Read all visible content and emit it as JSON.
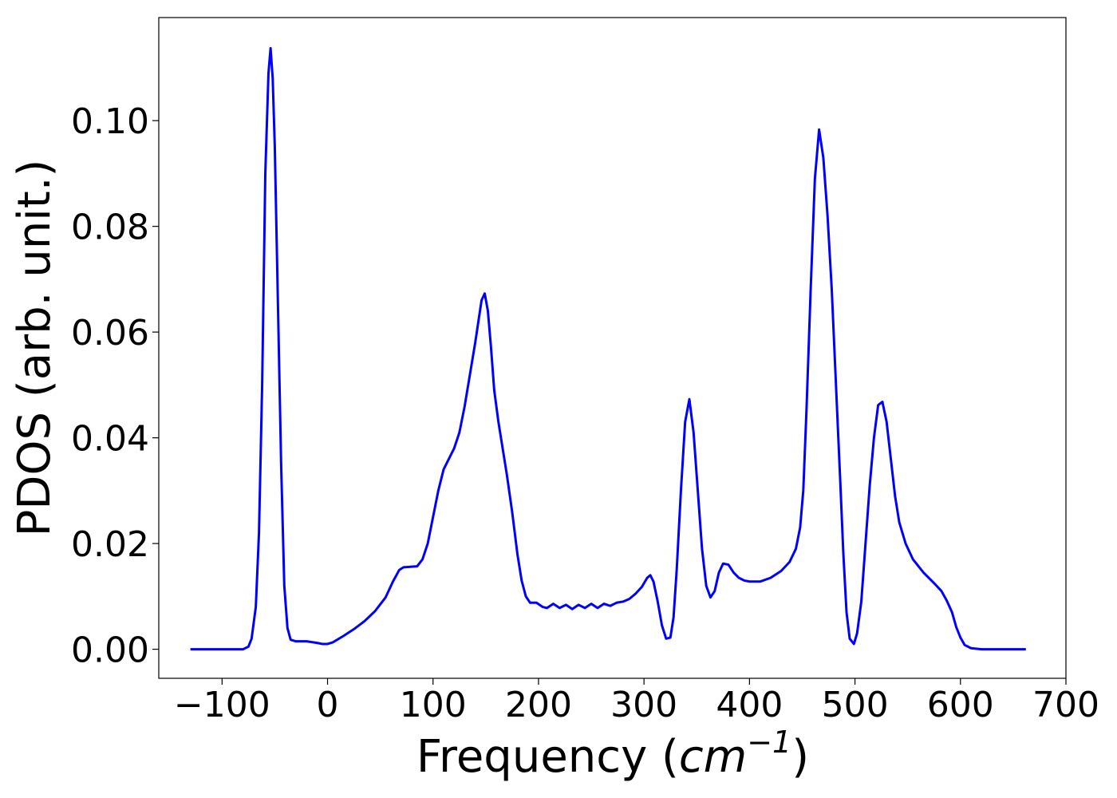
{
  "chart_data": {
    "type": "line",
    "xlabel_prefix": "Frequency (",
    "xlabel_unit_base": "cm",
    "xlabel_unit_exp": "−1",
    "xlabel_suffix": ")",
    "ylabel": "PDOS (arb. unit.)",
    "xlim": [
      -160,
      700
    ],
    "ylim": [
      -0.0055,
      0.1195
    ],
    "grid": false,
    "legend": "none",
    "x_ticks": [
      -100,
      0,
      100,
      200,
      300,
      400,
      500,
      600,
      700
    ],
    "x_tick_labels": [
      "−100",
      "0",
      "100",
      "200",
      "300",
      "400",
      "500",
      "600",
      "700"
    ],
    "y_ticks": [
      0.0,
      0.02,
      0.04,
      0.06,
      0.08,
      0.1
    ],
    "y_tick_labels": [
      "0.00",
      "0.02",
      "0.04",
      "0.06",
      "0.08",
      "0.10"
    ],
    "series": [
      {
        "color": "#0000ff",
        "points": [
          [
            -130,
            0.0
          ],
          [
            -80,
            0.0
          ],
          [
            -75,
            0.0005
          ],
          [
            -72,
            0.002
          ],
          [
            -68,
            0.008
          ],
          [
            -65,
            0.022
          ],
          [
            -62,
            0.05
          ],
          [
            -59,
            0.09
          ],
          [
            -56,
            0.109
          ],
          [
            -54,
            0.1137
          ],
          [
            -52,
            0.108
          ],
          [
            -50,
            0.095
          ],
          [
            -47,
            0.065
          ],
          [
            -44,
            0.035
          ],
          [
            -41,
            0.012
          ],
          [
            -38,
            0.004
          ],
          [
            -35,
            0.0018
          ],
          [
            -30,
            0.0015
          ],
          [
            -20,
            0.0015
          ],
          [
            -10,
            0.0012
          ],
          [
            -5,
            0.001
          ],
          [
            0,
            0.001
          ],
          [
            5,
            0.0013
          ],
          [
            15,
            0.0025
          ],
          [
            25,
            0.0038
          ],
          [
            35,
            0.0053
          ],
          [
            45,
            0.0072
          ],
          [
            55,
            0.0098
          ],
          [
            62,
            0.0128
          ],
          [
            68,
            0.015
          ],
          [
            72,
            0.0155
          ],
          [
            85,
            0.0157
          ],
          [
            90,
            0.017
          ],
          [
            95,
            0.02
          ],
          [
            100,
            0.025
          ],
          [
            105,
            0.03
          ],
          [
            110,
            0.034
          ],
          [
            115,
            0.036
          ],
          [
            120,
            0.038
          ],
          [
            125,
            0.041
          ],
          [
            130,
            0.046
          ],
          [
            135,
            0.052
          ],
          [
            140,
            0.058
          ],
          [
            143,
            0.062
          ],
          [
            146,
            0.066
          ],
          [
            149,
            0.0673
          ],
          [
            152,
            0.064
          ],
          [
            155,
            0.057
          ],
          [
            158,
            0.049
          ],
          [
            162,
            0.043
          ],
          [
            166,
            0.038
          ],
          [
            170,
            0.033
          ],
          [
            175,
            0.026
          ],
          [
            180,
            0.018
          ],
          [
            184,
            0.013
          ],
          [
            188,
            0.01
          ],
          [
            192,
            0.0088
          ],
          [
            198,
            0.0088
          ],
          [
            204,
            0.008
          ],
          [
            208,
            0.0078
          ],
          [
            214,
            0.0086
          ],
          [
            220,
            0.0078
          ],
          [
            226,
            0.0084
          ],
          [
            232,
            0.0076
          ],
          [
            238,
            0.0084
          ],
          [
            244,
            0.0078
          ],
          [
            250,
            0.0086
          ],
          [
            256,
            0.0078
          ],
          [
            262,
            0.0086
          ],
          [
            268,
            0.0082
          ],
          [
            274,
            0.0088
          ],
          [
            280,
            0.009
          ],
          [
            286,
            0.0095
          ],
          [
            292,
            0.0105
          ],
          [
            298,
            0.0118
          ],
          [
            303,
            0.0135
          ],
          [
            306,
            0.014
          ],
          [
            309,
            0.0128
          ],
          [
            313,
            0.009
          ],
          [
            317,
            0.0045
          ],
          [
            321,
            0.002
          ],
          [
            325,
            0.0022
          ],
          [
            328,
            0.006
          ],
          [
            331,
            0.015
          ],
          [
            335,
            0.03
          ],
          [
            339,
            0.043
          ],
          [
            343,
            0.0473
          ],
          [
            347,
            0.041
          ],
          [
            351,
            0.03
          ],
          [
            355,
            0.019
          ],
          [
            359,
            0.012
          ],
          [
            363,
            0.0098
          ],
          [
            367,
            0.011
          ],
          [
            371,
            0.0145
          ],
          [
            375,
            0.0162
          ],
          [
            380,
            0.016
          ],
          [
            385,
            0.0145
          ],
          [
            390,
            0.0135
          ],
          [
            395,
            0.013
          ],
          [
            400,
            0.0128
          ],
          [
            410,
            0.0128
          ],
          [
            420,
            0.0135
          ],
          [
            430,
            0.0148
          ],
          [
            438,
            0.0165
          ],
          [
            444,
            0.019
          ],
          [
            448,
            0.023
          ],
          [
            451,
            0.03
          ],
          [
            454,
            0.045
          ],
          [
            458,
            0.068
          ],
          [
            462,
            0.089
          ],
          [
            466,
            0.0983
          ],
          [
            470,
            0.093
          ],
          [
            474,
            0.082
          ],
          [
            478,
            0.068
          ],
          [
            482,
            0.05
          ],
          [
            486,
            0.032
          ],
          [
            489,
            0.018
          ],
          [
            492,
            0.007
          ],
          [
            495,
            0.002
          ],
          [
            499,
            0.001
          ],
          [
            502,
            0.003
          ],
          [
            506,
            0.009
          ],
          [
            510,
            0.02
          ],
          [
            514,
            0.031
          ],
          [
            518,
            0.04
          ],
          [
            522,
            0.0462
          ],
          [
            526,
            0.0468
          ],
          [
            530,
            0.043
          ],
          [
            534,
            0.036
          ],
          [
            538,
            0.029
          ],
          [
            542,
            0.024
          ],
          [
            548,
            0.02
          ],
          [
            555,
            0.017
          ],
          [
            565,
            0.0145
          ],
          [
            575,
            0.0125
          ],
          [
            582,
            0.011
          ],
          [
            587,
            0.0092
          ],
          [
            592,
            0.007
          ],
          [
            596,
            0.0042
          ],
          [
            600,
            0.0022
          ],
          [
            604,
            0.0008
          ],
          [
            610,
            0.0002
          ],
          [
            620,
            0.0
          ],
          [
            662,
            0.0
          ]
        ]
      }
    ]
  }
}
